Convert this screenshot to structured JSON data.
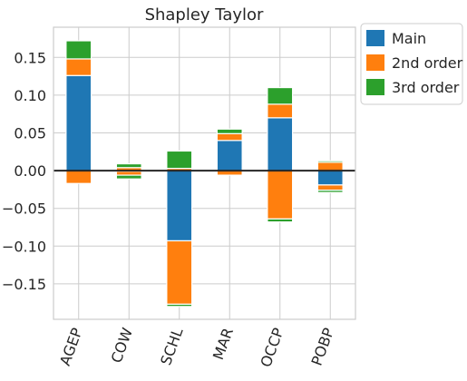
{
  "chart_data": {
    "type": "bar",
    "stacked": true,
    "title": "Shapley Taylor",
    "categories": [
      "AGEP",
      "COW",
      "SCHL",
      "MAR",
      "OCCP",
      "POBP"
    ],
    "series": [
      {
        "name": "Main",
        "color": "#1f77b4",
        "values": [
          [
            0,
            0.126
          ],
          [
            0,
            0.004
          ],
          [
            -0.093,
            0
          ],
          [
            0,
            0.04
          ],
          [
            0,
            0.07
          ],
          [
            -0.019,
            0
          ]
        ]
      },
      {
        "name": "2nd order",
        "color": "#ff7f0e",
        "values": [
          [
            0.126,
            0.148
          ],
          [
            0,
            -0.006
          ],
          [
            -0.093,
            -0.177
          ],
          [
            0.04,
            0.049
          ],
          [
            0.07,
            0.088
          ],
          [
            -0.019,
            -0.026
          ]
        ]
      },
      {
        "name": "2nd order neg",
        "color": "#ff7f0e",
        "hidden_legend": true,
        "values": [
          [
            0,
            -0.017
          ],
          [
            0.004,
            -0.001
          ],
          [
            0,
            0.003
          ],
          [
            0,
            -0.006
          ],
          [
            0,
            -0.064
          ],
          [
            0,
            0.011
          ]
        ]
      },
      {
        "name": "3rd order",
        "color": "#2ca02c",
        "values": [
          [
            0.148,
            0.172
          ],
          [
            0.004,
            0.009
          ],
          [
            0.003,
            0.026
          ],
          [
            0.049,
            0.055
          ],
          [
            0.088,
            0.11
          ],
          [
            0.011,
            0.013
          ]
        ]
      },
      {
        "name": "3rd order neg",
        "color": "#2ca02c",
        "hidden_legend": true,
        "values": [
          [
            0,
            0
          ],
          [
            -0.006,
            -0.011
          ],
          [
            -0.177,
            -0.18
          ],
          [
            0,
            0
          ],
          [
            -0.064,
            -0.068
          ],
          [
            -0.026,
            -0.029
          ]
        ]
      }
    ],
    "yticks": [
      0.15,
      0.1,
      0.05,
      0.0,
      -0.05,
      -0.1,
      -0.15
    ],
    "ytick_labels": [
      "0.15",
      "0.10",
      "0.05",
      "0.00",
      "−0.05",
      "−0.10",
      "−0.15"
    ],
    "ylim": [
      -0.197,
      0.19
    ],
    "grid": true,
    "legend": {
      "placement": "outside-top-right",
      "entries": [
        "Main",
        "2nd order",
        "3rd order"
      ]
    }
  }
}
